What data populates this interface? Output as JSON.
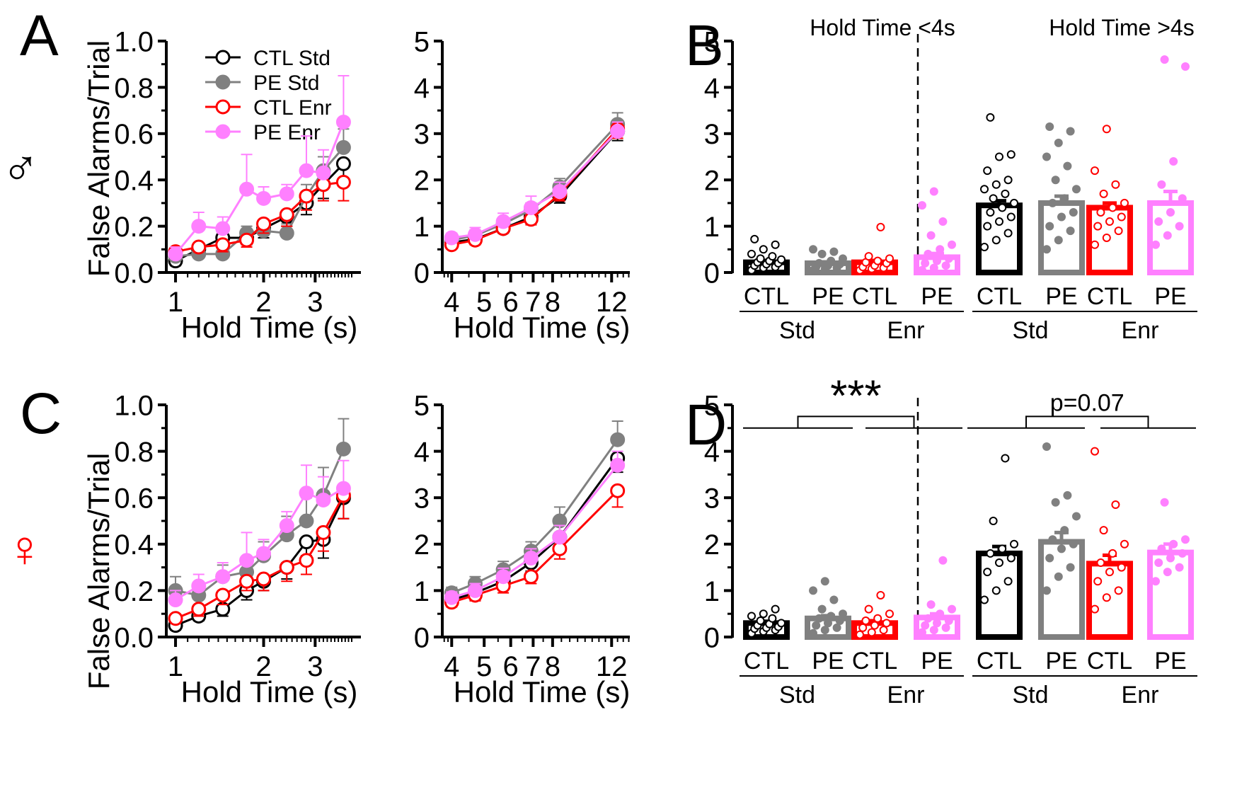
{
  "panels": {
    "A": "A",
    "B": "B",
    "C": "C",
    "D": "D"
  },
  "sex": {
    "male": "♂",
    "female": "♀"
  },
  "colors": {
    "ctl_std": "#000000",
    "pe_std": "#808080",
    "ctl_enr": "#ff0000",
    "pe_enr": "#ff80ff"
  },
  "legend": [
    "CTL Std",
    "PE Std",
    "CTL Enr",
    "PE Enr"
  ],
  "labels": {
    "ylabel": "False Alarms/Trial",
    "xlabel": "Hold Time (s)",
    "short_title": "Hold Time <4s",
    "long_title": "Hold Time >4s",
    "group_ctl": "CTL",
    "group_pe": "PE",
    "std": "Std",
    "enr": "Enr",
    "sig_short_female": "***",
    "sig_long_female": "p=0.07"
  },
  "chart_data": [
    {
      "id": "A-short",
      "type": "line",
      "title": "",
      "xlabel": "Hold Time (s)",
      "ylabel": "False Alarms/Trial",
      "xscale": "log",
      "xlim": [
        0.93,
        4.3
      ],
      "ylim": [
        0,
        1.0
      ],
      "yticks": [
        "0.0",
        "0.2",
        "0.4",
        "0.6",
        "0.8",
        "1.0"
      ],
      "xticks": [
        "1",
        "2",
        "3"
      ],
      "x": [
        1.0,
        1.2,
        1.45,
        1.75,
        2.0,
        2.4,
        2.8,
        3.2,
        3.75
      ],
      "series": [
        {
          "name": "CTL Std",
          "values": [
            0.05,
            0.1,
            0.15,
            0.15,
            0.19,
            0.24,
            0.3,
            0.38,
            0.47
          ],
          "err": [
            0.02,
            0.02,
            0.03,
            0.03,
            0.04,
            0.04,
            0.05,
            0.06,
            0.07
          ]
        },
        {
          "name": "PE Std",
          "values": [
            0.07,
            0.08,
            0.08,
            0.17,
            0.18,
            0.17,
            0.33,
            0.44,
            0.54
          ],
          "err": [
            0.02,
            0.02,
            0.02,
            0.03,
            0.04,
            0.04,
            0.05,
            0.06,
            0.08
          ]
        },
        {
          "name": "CTL Enr",
          "values": [
            0.09,
            0.11,
            0.12,
            0.14,
            0.21,
            0.25,
            0.33,
            0.38,
            0.39
          ],
          "err": [
            0.02,
            0.02,
            0.03,
            0.03,
            0.04,
            0.05,
            0.06,
            0.07,
            0.08
          ]
        },
        {
          "name": "PE Enr",
          "values": [
            0.08,
            0.2,
            0.19,
            0.36,
            0.32,
            0.34,
            0.44,
            0.43,
            0.65
          ],
          "err": [
            0.03,
            0.06,
            0.05,
            0.15,
            0.05,
            0.04,
            0.15,
            0.1,
            0.2
          ]
        }
      ]
    },
    {
      "id": "A-long",
      "type": "line",
      "title": "",
      "xlabel": "Hold Time (s)",
      "ylabel": "",
      "xscale": "log",
      "xlim": [
        3.75,
        13.6
      ],
      "ylim": [
        0,
        5
      ],
      "yticks": [
        "0",
        "1",
        "2",
        "3",
        "4",
        "5"
      ],
      "xticks": [
        "4",
        "5",
        "6",
        "7",
        "8",
        "12"
      ],
      "x": [
        4.0,
        4.7,
        5.7,
        6.9,
        8.4,
        12.5
      ],
      "series": [
        {
          "name": "CTL Std",
          "values": [
            0.65,
            0.72,
            0.95,
            1.2,
            1.65,
            3.05
          ],
          "err": [
            0.1,
            0.1,
            0.1,
            0.12,
            0.15,
            0.2
          ]
        },
        {
          "name": "PE Std",
          "values": [
            0.7,
            0.8,
            1.05,
            1.35,
            1.85,
            3.2
          ],
          "err": [
            0.1,
            0.12,
            0.12,
            0.15,
            0.18,
            0.25
          ]
        },
        {
          "name": "CTL Enr",
          "values": [
            0.6,
            0.7,
            0.95,
            1.15,
            1.7,
            3.1
          ],
          "err": [
            0.08,
            0.1,
            0.1,
            0.12,
            0.15,
            0.2
          ]
        },
        {
          "name": "PE Enr",
          "values": [
            0.75,
            0.82,
            1.1,
            1.4,
            1.75,
            3.05
          ],
          "err": [
            0.1,
            0.15,
            0.18,
            0.25,
            0.2,
            0.2
          ]
        }
      ]
    },
    {
      "id": "B",
      "type": "bar",
      "titles": [
        "Hold Time <4s",
        "Hold Time >4s"
      ],
      "ylim": [
        0,
        5
      ],
      "yticks": [
        "0",
        "1",
        "2",
        "3",
        "4",
        "5"
      ],
      "categories": [
        "CTL",
        "PE",
        "CTL",
        "PE",
        "CTL",
        "PE",
        "CTL",
        "PE"
      ],
      "groups": [
        "Std",
        "Enr",
        "Std",
        "Enr"
      ],
      "series_for_bar": [
        "CTL Std",
        "PE Std",
        "CTL Enr",
        "PE Enr",
        "CTL Std",
        "PE Std",
        "CTL Enr",
        "PE Enr"
      ],
      "values": [
        0.22,
        0.2,
        0.22,
        0.33,
        1.45,
        1.5,
        1.4,
        1.5
      ],
      "err": [
        0.04,
        0.03,
        0.04,
        0.08,
        0.1,
        0.15,
        0.1,
        0.25
      ],
      "points": [
        [
          0.05,
          0.1,
          0.12,
          0.15,
          0.18,
          0.2,
          0.22,
          0.25,
          0.28,
          0.3,
          0.35,
          0.4,
          0.5,
          0.6,
          0.72
        ],
        [
          0.05,
          0.08,
          0.1,
          0.12,
          0.15,
          0.18,
          0.2,
          0.25,
          0.3,
          0.4,
          0.45,
          0.5
        ],
        [
          0.05,
          0.08,
          0.1,
          0.12,
          0.15,
          0.2,
          0.22,
          0.25,
          0.3,
          0.35,
          0.98
        ],
        [
          0.05,
          0.1,
          0.15,
          0.2,
          0.25,
          0.3,
          0.4,
          0.5,
          0.6,
          0.8,
          1.1,
          1.45,
          1.75
        ],
        [
          0.55,
          0.7,
          0.85,
          1.0,
          1.1,
          1.2,
          1.3,
          1.4,
          1.5,
          1.6,
          1.7,
          1.8,
          1.9,
          2.0,
          2.2,
          2.5,
          2.55,
          3.35
        ],
        [
          0.5,
          0.7,
          0.9,
          1.0,
          1.2,
          1.3,
          1.5,
          1.6,
          1.8,
          2.0,
          2.3,
          2.5,
          2.8,
          3.05,
          3.15
        ],
        [
          0.6,
          0.75,
          0.9,
          1.0,
          1.1,
          1.2,
          1.3,
          1.4,
          1.5,
          1.7,
          1.9,
          2.2,
          3.1
        ],
        [
          0.6,
          0.8,
          1.0,
          1.1,
          1.3,
          1.6,
          1.9,
          2.4,
          4.45,
          4.6
        ]
      ]
    },
    {
      "id": "C-short",
      "type": "line",
      "title": "",
      "xlabel": "Hold Time (s)",
      "ylabel": "False Alarms/Trial",
      "xscale": "log",
      "xlim": [
        0.93,
        4.3
      ],
      "ylim": [
        0,
        1.0
      ],
      "yticks": [
        "0.0",
        "0.2",
        "0.4",
        "0.6",
        "0.8",
        "1.0"
      ],
      "xticks": [
        "1",
        "2",
        "3"
      ],
      "x": [
        1.0,
        1.2,
        1.45,
        1.75,
        2.0,
        2.4,
        2.8,
        3.2,
        3.75
      ],
      "series": [
        {
          "name": "CTL Std",
          "values": [
            0.05,
            0.09,
            0.12,
            0.2,
            0.24,
            0.3,
            0.41,
            0.42,
            0.6
          ],
          "err": [
            0.02,
            0.02,
            0.03,
            0.04,
            0.04,
            0.05,
            0.06,
            0.08,
            0.09
          ]
        },
        {
          "name": "PE Std",
          "values": [
            0.2,
            0.18,
            0.26,
            0.28,
            0.35,
            0.44,
            0.5,
            0.61,
            0.81
          ],
          "err": [
            0.06,
            0.05,
            0.05,
            0.05,
            0.06,
            0.08,
            0.1,
            0.12,
            0.13
          ]
        },
        {
          "name": "CTL Enr",
          "values": [
            0.08,
            0.12,
            0.18,
            0.24,
            0.25,
            0.3,
            0.33,
            0.45,
            0.61
          ],
          "err": [
            0.02,
            0.03,
            0.04,
            0.04,
            0.05,
            0.06,
            0.06,
            0.08,
            0.1
          ]
        },
        {
          "name": "PE Enr",
          "values": [
            0.16,
            0.22,
            0.26,
            0.33,
            0.36,
            0.48,
            0.62,
            0.59,
            0.64
          ],
          "err": [
            0.04,
            0.05,
            0.06,
            0.12,
            0.06,
            0.06,
            0.12,
            0.1,
            0.12
          ]
        }
      ]
    },
    {
      "id": "C-long",
      "type": "line",
      "title": "",
      "xlabel": "Hold Time (s)",
      "ylabel": "",
      "xscale": "log",
      "xlim": [
        3.75,
        13.6
      ],
      "ylim": [
        0,
        5
      ],
      "yticks": [
        "0",
        "1",
        "2",
        "3",
        "4",
        "5"
      ],
      "xticks": [
        "4",
        "5",
        "6",
        "7",
        "8",
        "12"
      ],
      "x": [
        4.0,
        4.7,
        5.7,
        6.9,
        8.4,
        12.5
      ],
      "series": [
        {
          "name": "CTL Std",
          "values": [
            0.8,
            0.95,
            1.2,
            1.6,
            2.15,
            3.85
          ],
          "err": [
            0.12,
            0.12,
            0.15,
            0.18,
            0.2,
            0.3
          ]
        },
        {
          "name": "PE Std",
          "values": [
            0.95,
            1.15,
            1.45,
            1.85,
            2.5,
            4.25
          ],
          "err": [
            0.12,
            0.15,
            0.18,
            0.2,
            0.3,
            0.4
          ]
        },
        {
          "name": "CTL Enr",
          "values": [
            0.75,
            0.9,
            1.1,
            1.3,
            1.9,
            3.15
          ],
          "err": [
            0.1,
            0.12,
            0.15,
            0.15,
            0.22,
            0.35
          ]
        },
        {
          "name": "PE Enr",
          "values": [
            0.85,
            1.0,
            1.3,
            1.7,
            2.15,
            3.7
          ],
          "err": [
            0.12,
            0.15,
            0.18,
            0.2,
            0.25,
            0.3
          ]
        }
      ]
    },
    {
      "id": "D",
      "type": "bar",
      "titles": [],
      "ylim": [
        0,
        5
      ],
      "yticks": [
        "0",
        "1",
        "2",
        "3",
        "4",
        "5"
      ],
      "categories": [
        "CTL",
        "PE",
        "CTL",
        "PE",
        "CTL",
        "PE",
        "CTL",
        "PE"
      ],
      "groups": [
        "Std",
        "Enr",
        "Std",
        "Enr"
      ],
      "series_for_bar": [
        "CTL Std",
        "PE Std",
        "CTL Enr",
        "PE Enr",
        "CTL Std",
        "PE Std",
        "CTL Enr",
        "PE Enr"
      ],
      "values": [
        0.3,
        0.4,
        0.3,
        0.42,
        1.8,
        2.05,
        1.58,
        1.82
      ],
      "err": [
        0.04,
        0.06,
        0.05,
        0.08,
        0.15,
        0.2,
        0.18,
        0.18
      ],
      "points": [
        [
          0.08,
          0.12,
          0.15,
          0.18,
          0.2,
          0.22,
          0.25,
          0.28,
          0.3,
          0.35,
          0.4,
          0.45,
          0.5,
          0.6
        ],
        [
          0.08,
          0.15,
          0.2,
          0.25,
          0.3,
          0.35,
          0.4,
          0.45,
          0.5,
          0.6,
          0.8,
          1.0,
          1.2
        ],
        [
          0.05,
          0.1,
          0.15,
          0.2,
          0.25,
          0.3,
          0.35,
          0.4,
          0.5,
          0.6,
          0.9
        ],
        [
          0.1,
          0.15,
          0.2,
          0.25,
          0.3,
          0.35,
          0.4,
          0.5,
          0.6,
          0.7,
          1.65
        ],
        [
          0.8,
          1.0,
          1.2,
          1.4,
          1.6,
          1.7,
          1.8,
          1.9,
          2.0,
          2.5,
          3.85
        ],
        [
          1.0,
          1.3,
          1.5,
          1.7,
          1.9,
          2.0,
          2.1,
          2.3,
          2.6,
          2.9,
          3.05,
          4.1
        ],
        [
          0.6,
          0.85,
          1.0,
          1.2,
          1.4,
          1.5,
          1.6,
          1.8,
          2.0,
          2.3,
          2.85,
          4.0
        ],
        [
          1.2,
          1.4,
          1.5,
          1.6,
          1.7,
          1.8,
          1.9,
          2.0,
          2.1,
          2.9
        ]
      ],
      "significance": [
        "***",
        "p=0.07"
      ]
    }
  ]
}
